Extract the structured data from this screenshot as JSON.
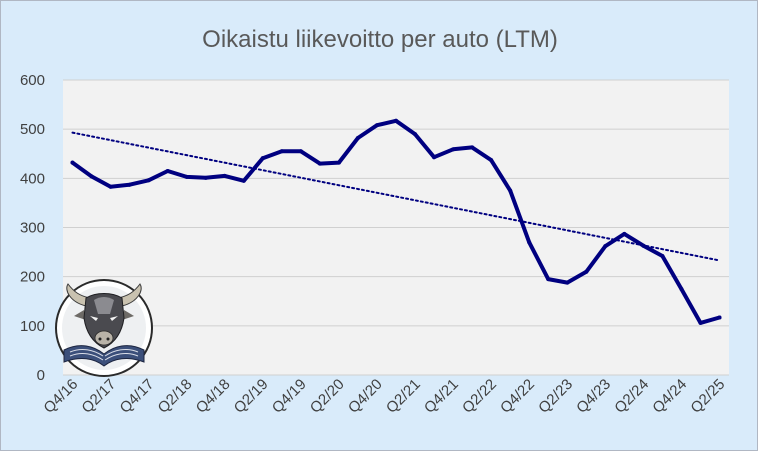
{
  "chart_data": {
    "type": "line",
    "title": "Oikaistu liikevoitto per auto (LTM)",
    "xlabel": "",
    "ylabel": "",
    "ylim": [
      0,
      600
    ],
    "yticks": [
      0,
      100,
      200,
      300,
      400,
      500,
      600
    ],
    "grid": true,
    "legend": "none",
    "x": [
      "Q4/16",
      "Q1/17",
      "Q2/17",
      "Q3/17",
      "Q4/17",
      "Q1/18",
      "Q2/18",
      "Q3/18",
      "Q4/18",
      "Q1/19",
      "Q2/19",
      "Q3/19",
      "Q4/19",
      "Q1/20",
      "Q2/20",
      "Q3/20",
      "Q4/20",
      "Q1/21",
      "Q2/21",
      "Q3/21",
      "Q4/21",
      "Q1/22",
      "Q2/22",
      "Q3/22",
      "Q4/22",
      "Q1/23",
      "Q2/23",
      "Q3/23",
      "Q4/23",
      "Q1/24",
      "Q2/24",
      "Q3/24",
      "Q4/24",
      "Q1/25",
      "Q2/25"
    ],
    "x_tick_labels": [
      "Q4/16",
      "Q2/17",
      "Q4/17",
      "Q2/18",
      "Q4/18",
      "Q2/19",
      "Q4/19",
      "Q2/20",
      "Q4/20",
      "Q2/21",
      "Q4/21",
      "Q2/22",
      "Q4/22",
      "Q2/23",
      "Q4/23",
      "Q2/24",
      "Q4/24",
      "Q2/25"
    ],
    "series": [
      {
        "values": [
          432,
          404,
          383,
          387,
          396,
          415,
          403,
          401,
          405,
          395,
          441,
          455,
          455,
          430,
          432,
          482,
          508,
          517,
          490,
          443,
          459,
          463,
          437,
          375,
          270,
          195,
          188,
          210,
          262,
          287,
          263,
          242,
          175,
          106,
          117
        ],
        "color": "#000080"
      }
    ],
    "trendline": {
      "style": "dotted",
      "start": 493,
      "end": 233,
      "color": "#000080"
    },
    "colors": {
      "background": "#d9ebfa",
      "plot_area": "#f2f2f2",
      "line": "#000080",
      "grid": "#d0d0d0",
      "title": "#595959"
    },
    "logo": "bull-reading-book-icon"
  }
}
